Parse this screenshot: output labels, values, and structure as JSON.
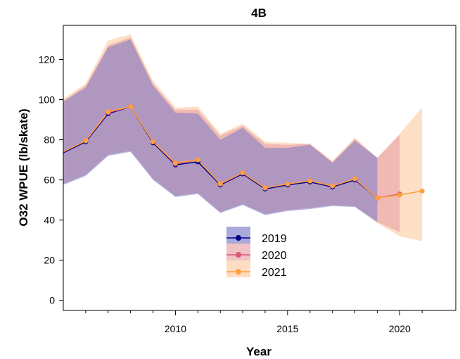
{
  "chart_data": {
    "type": "line",
    "title": "4B",
    "xlabel": "Year",
    "ylabel": "O32 WPUE (lb/skate)",
    "xlim": [
      2005,
      2022.5
    ],
    "ylim": [
      -5,
      137
    ],
    "x_ticks": [
      2010,
      2015,
      2020
    ],
    "y_ticks": [
      0,
      20,
      40,
      60,
      80,
      100,
      120
    ],
    "grid": false,
    "legend_position": "bottom-center",
    "series": [
      {
        "name": "2019",
        "color": "#00008B",
        "band_color": "#7B7BC8",
        "x": [
          2005,
          2006,
          2007,
          2008,
          2009,
          2010,
          2011,
          2012,
          2013,
          2014,
          2015,
          2016,
          2017,
          2018,
          2019
        ],
        "y": [
          73.5,
          79,
          93,
          96.5,
          78.5,
          67.5,
          69,
          57.5,
          63,
          55.5,
          57.5,
          59,
          56.5,
          60,
          51
        ],
        "lower": [
          57.5,
          62,
          72,
          74,
          60,
          51.5,
          53,
          43.5,
          47.5,
          42.5,
          44.5,
          45.5,
          47,
          46.5,
          39
        ],
        "upper": [
          99,
          106,
          126,
          130,
          107,
          93.5,
          93,
          80,
          86,
          76,
          76,
          77.5,
          68.5,
          79.5,
          71
        ]
      },
      {
        "name": "2020",
        "color": "#D9596E",
        "band_color": "#E8A0A6",
        "x": [
          2005,
          2006,
          2007,
          2008,
          2009,
          2010,
          2011,
          2012,
          2013,
          2014,
          2015,
          2016,
          2017,
          2018,
          2019,
          2020
        ],
        "y": [
          74,
          79.5,
          93.5,
          96.5,
          79,
          68,
          70,
          58,
          63.5,
          56,
          58,
          59.5,
          57,
          60.5,
          51,
          53
        ],
        "lower": [
          58,
          62.5,
          72.5,
          74.5,
          60.5,
          52,
          53.5,
          44,
          48,
          43,
          45,
          46,
          47.5,
          47,
          39,
          34
        ],
        "upper": [
          99.5,
          107,
          127,
          131,
          108,
          95,
          95,
          82,
          87,
          78,
          77.5,
          78,
          69,
          80.5,
          71,
          82.5
        ]
      },
      {
        "name": "2021",
        "color": "#FFA040",
        "band_color": "#FCC9A0",
        "x": [
          2005,
          2006,
          2007,
          2008,
          2009,
          2010,
          2011,
          2012,
          2013,
          2014,
          2015,
          2016,
          2017,
          2018,
          2019,
          2020,
          2021
        ],
        "y": [
          74,
          79.5,
          94,
          96.5,
          79,
          68.5,
          70,
          58,
          63.5,
          56,
          58,
          59.5,
          57,
          60.5,
          51,
          52.5,
          54.5
        ],
        "lower": [
          58.5,
          63,
          73,
          74.5,
          61,
          52,
          53.5,
          44,
          48,
          43,
          45,
          46,
          47.5,
          47,
          38.5,
          32,
          29.5
        ],
        "upper": [
          100.5,
          108,
          129.5,
          132.5,
          109.5,
          96,
          96.5,
          83,
          88,
          79,
          78.5,
          78,
          69.5,
          81,
          71,
          83,
          96
        ]
      }
    ]
  }
}
